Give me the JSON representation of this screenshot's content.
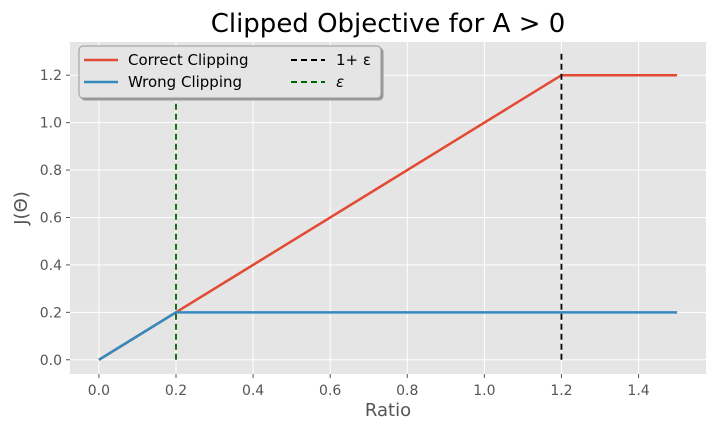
{
  "chart_data": {
    "type": "line",
    "title": "Clipped Objective for A > 0",
    "xlabel": "Ratio",
    "ylabel": "J(Θ)",
    "xlim": [
      -0.075,
      1.575
    ],
    "ylim": [
      -0.06,
      1.34
    ],
    "xticks": [
      0.0,
      0.2,
      0.4,
      0.6,
      0.8,
      1.0,
      1.2,
      1.4
    ],
    "xtick_labels": [
      "0.0",
      "0.2",
      "0.4",
      "0.6",
      "0.8",
      "1.0",
      "1.2",
      "1.4"
    ],
    "yticks": [
      0.0,
      0.2,
      0.4,
      0.6,
      0.8,
      1.0,
      1.2
    ],
    "ytick_labels": [
      "0.0",
      "0.2",
      "0.4",
      "0.6",
      "0.8",
      "1.0",
      "1.2"
    ],
    "grid": true,
    "legend_placement": "top-left",
    "legend_columns": 2,
    "series": [
      {
        "name": "Correct Clipping",
        "x": [
          0.0,
          0.2,
          1.2,
          1.5
        ],
        "y": [
          0.0,
          0.2,
          1.2,
          1.2
        ],
        "color": "#E24A33",
        "style": "solid"
      },
      {
        "name": "Wrong Clipping",
        "x": [
          0.0,
          0.2,
          1.2,
          1.5
        ],
        "y": [
          0.0,
          0.2,
          0.2,
          0.2
        ],
        "color": "#348ABD",
        "style": "solid"
      }
    ],
    "vlines": [
      {
        "name": "1+ ε",
        "x": 1.2,
        "y": [
          0.0,
          1.3
        ],
        "color": "#000000",
        "style": "dashed"
      },
      {
        "name": "ε",
        "x": 0.2,
        "y": [
          0.0,
          1.3
        ],
        "color": "#006400",
        "style": "dashed"
      }
    ]
  }
}
